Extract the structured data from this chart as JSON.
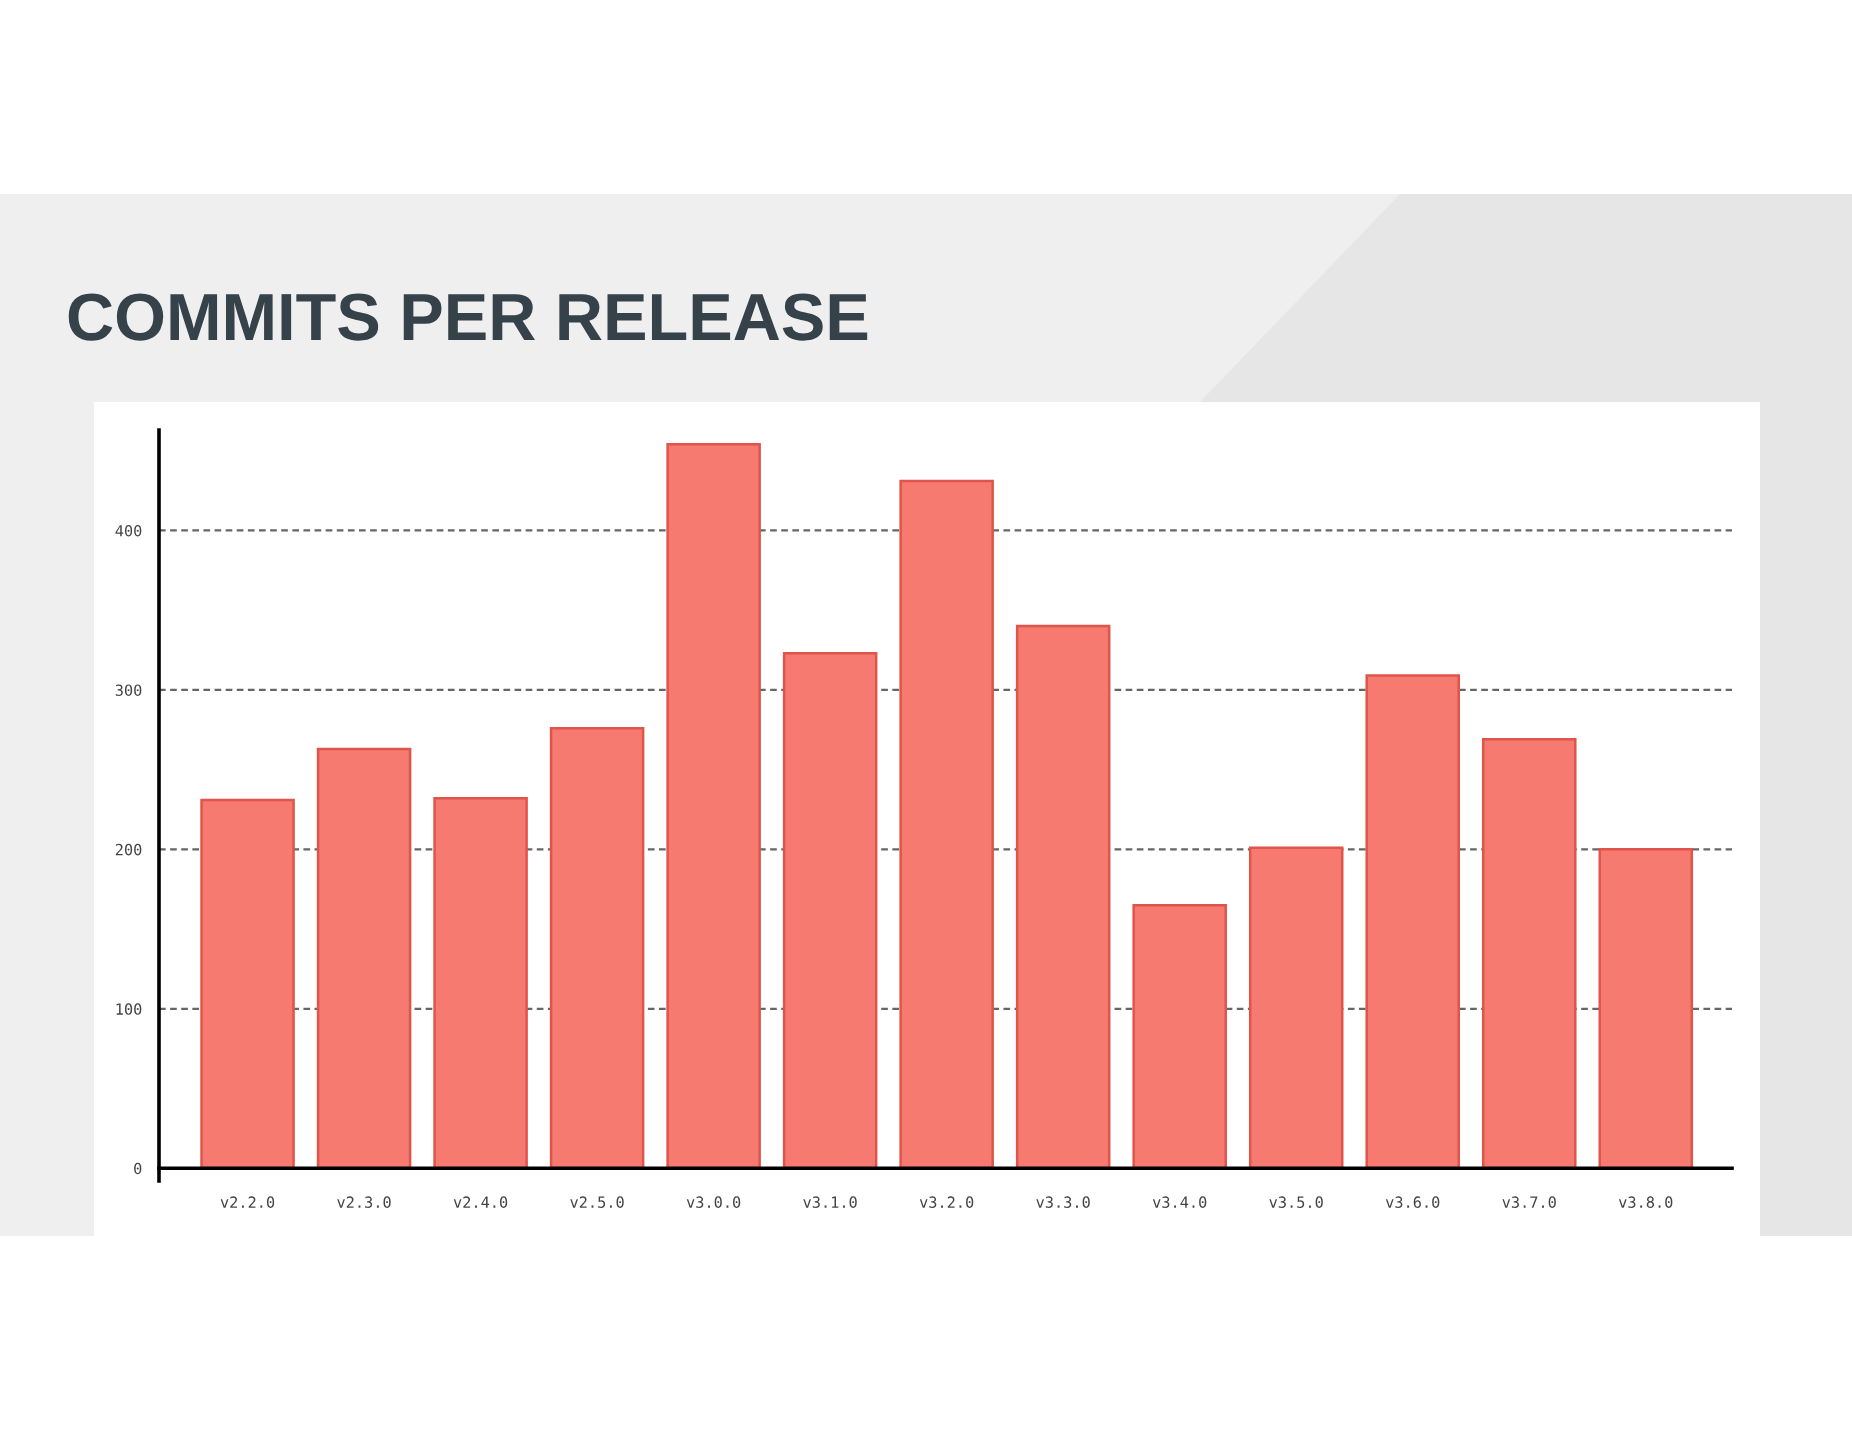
{
  "chart_data": {
    "type": "bar",
    "title": "COMMITS PER RELEASE",
    "categories": [
      "v2.2.0",
      "v2.3.0",
      "v2.4.0",
      "v2.5.0",
      "v3.0.0",
      "v3.1.0",
      "v3.2.0",
      "v3.3.0",
      "v3.4.0",
      "v3.5.0",
      "v3.6.0",
      "v3.7.0",
      "v3.8.0"
    ],
    "values": [
      231,
      263,
      232,
      276,
      454,
      323,
      431,
      340,
      165,
      201,
      309,
      269,
      200
    ],
    "color": "#f67a70",
    "ylim": [
      -8,
      463
    ],
    "yticks": [
      0,
      100,
      200,
      300,
      400
    ],
    "grid": "y"
  }
}
